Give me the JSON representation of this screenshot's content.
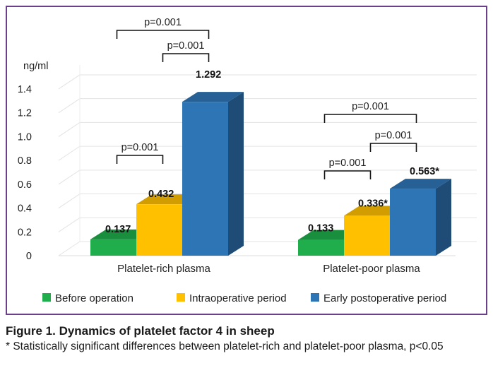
{
  "colors": {
    "frame": "#6b3f8a",
    "before_operation": "#1fae4b",
    "intraoperative": "#ffc000",
    "early_postoperative": "#2e75b6"
  },
  "chart_data": {
    "type": "bar",
    "style": "3d-clustered-column",
    "ylabel": "ng/ml",
    "ylim": [
      0,
      1.4
    ],
    "yticks": [
      "0",
      "0.2",
      "0.4",
      "0.6",
      "0.8",
      "1.0",
      "1.2",
      "1.4"
    ],
    "grid": true,
    "legend_position": "bottom",
    "categories": [
      "Platelet-rich plasma",
      "Platelet-poor plasma"
    ],
    "series": [
      {
        "name": "Before operation",
        "color": "#1fae4b",
        "values": [
          0.137,
          0.133
        ],
        "labels": [
          "0.137",
          "0.133"
        ]
      },
      {
        "name": "Intraoperative period",
        "color": "#ffc000",
        "values": [
          0.432,
          0.336
        ],
        "labels": [
          "0.432",
          "0.336*"
        ]
      },
      {
        "name": "Early postoperative period",
        "color": "#2e75b6",
        "values": [
          1.292,
          0.563
        ],
        "labels": [
          "1.292",
          "0.563*"
        ]
      }
    ],
    "significance": [
      {
        "category": 0,
        "from_series": 0,
        "to_series": 1,
        "label": "p=0.001"
      },
      {
        "category": 0,
        "from_series": 1,
        "to_series": 2,
        "label": "p=0.001"
      },
      {
        "category": 0,
        "from_series": 0,
        "to_series": 2,
        "label": "p=0.001"
      },
      {
        "category": 1,
        "from_series": 0,
        "to_series": 1,
        "label": "p=0.001"
      },
      {
        "category": 1,
        "from_series": 1,
        "to_series": 2,
        "label": "p=0.001"
      },
      {
        "category": 1,
        "from_series": 0,
        "to_series": 2,
        "label": "p=0.001"
      }
    ]
  },
  "caption": {
    "title": "Figure 1. Dynamics of platelet factor 4 in sheep",
    "note": "* Statistically significant differences between platelet-rich and platelet-poor plasma, p<0.05"
  }
}
